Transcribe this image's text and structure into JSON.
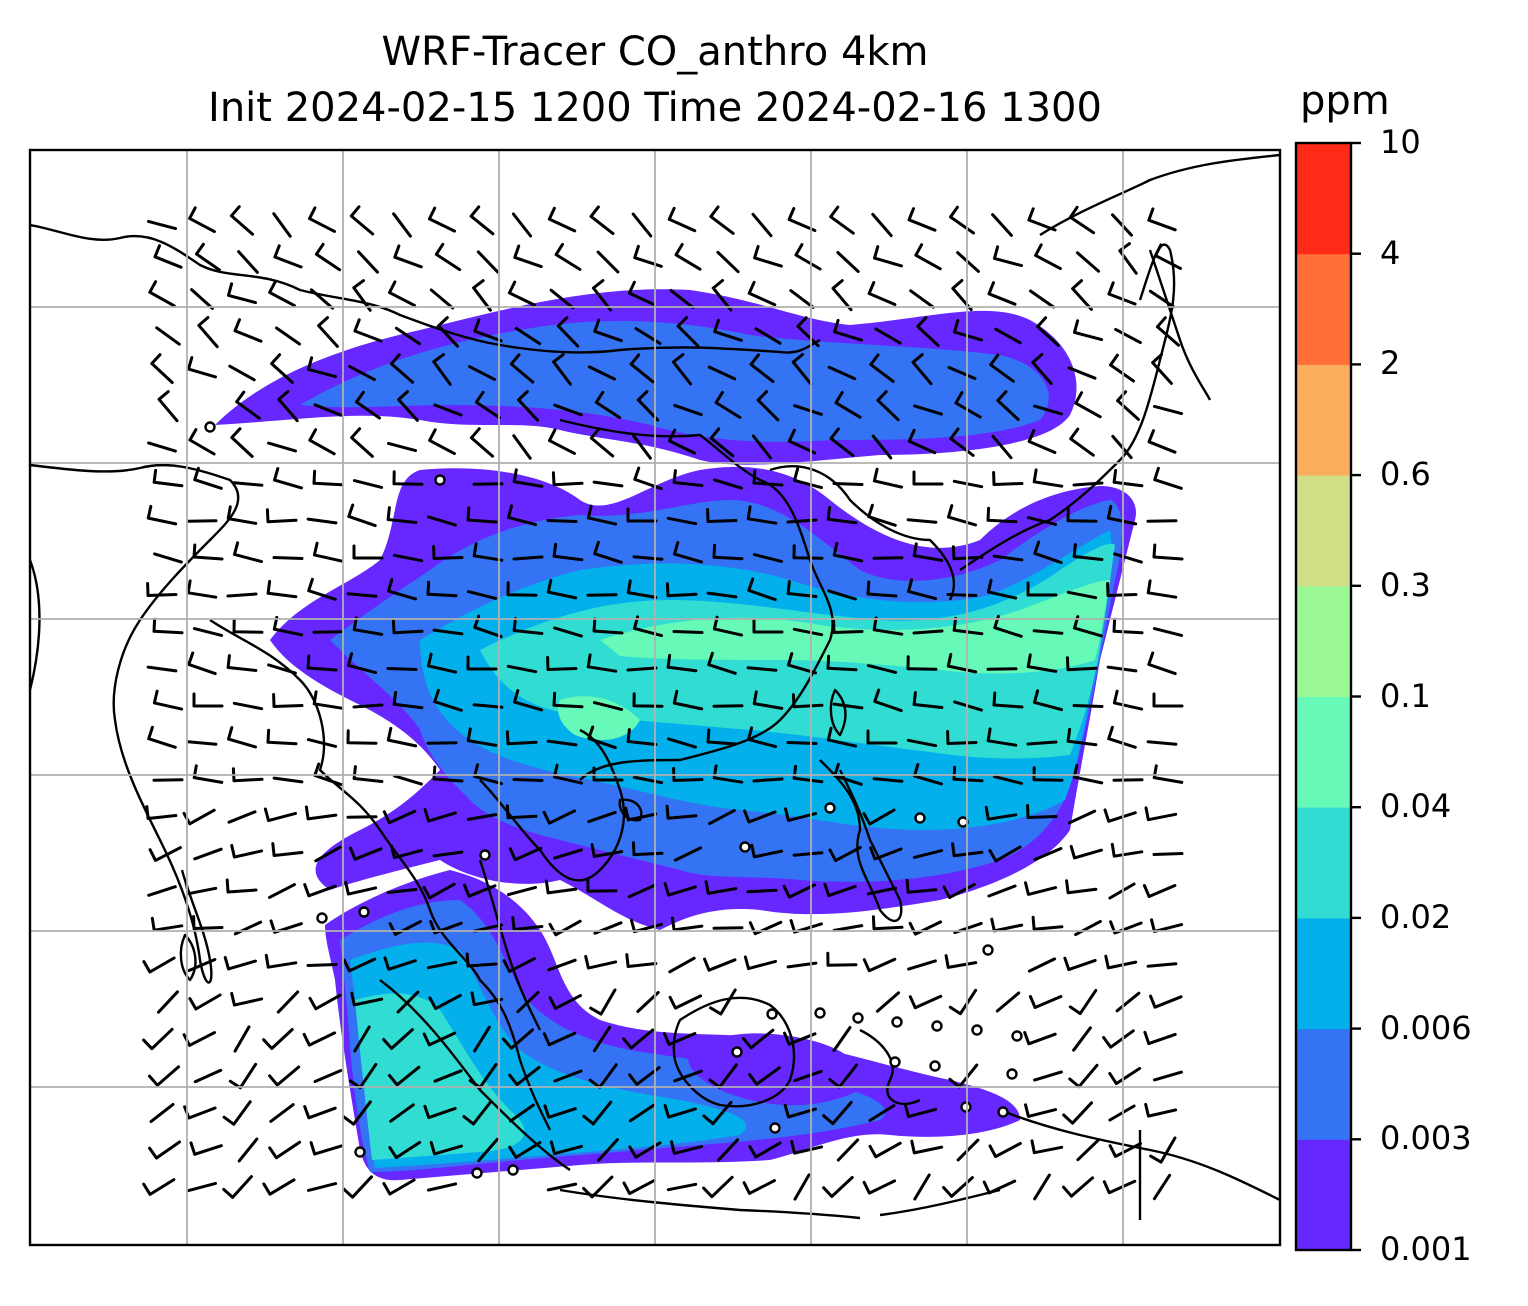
{
  "title_line1": "WRF-Tracer CO_anthro 4km",
  "title_line2": "Init 2024-02-15 1200 Time 2024-02-16 1300",
  "colorbar": {
    "unit": "ppm",
    "levels": [
      "0.001",
      "0.003",
      "0.006",
      "0.02",
      "0.04",
      "0.1",
      "0.3",
      "0.6",
      "2",
      "4",
      "10"
    ],
    "colors": [
      "#6628ff",
      "#3473f4",
      "#03b0ec",
      "#31dcd3",
      "#66f9b8",
      "#99f894",
      "#d0df85",
      "#fbad5e",
      "#ff6f3a",
      "#ff2a18"
    ]
  },
  "map_colors": {
    "coastline": "#000000",
    "gridline": "#b0b0b0",
    "frame": "#000000"
  }
}
